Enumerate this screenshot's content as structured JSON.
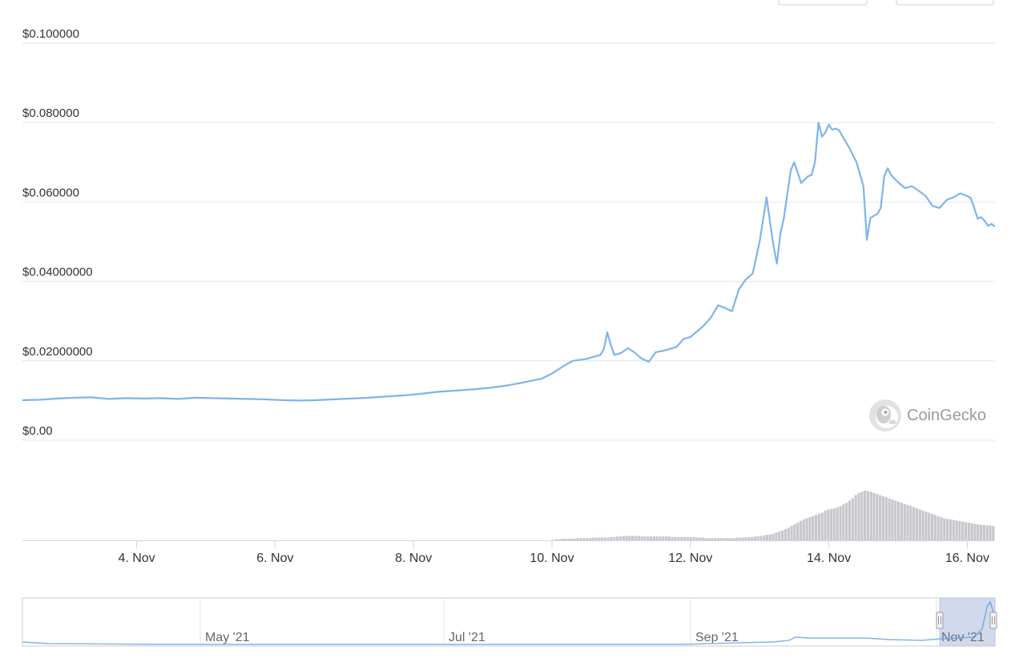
{
  "brand": {
    "name": "CoinGecko",
    "logo_icon": "gecko-logo-icon"
  },
  "colors": {
    "price_line": "#7cb5ec",
    "volume_bar": "#c7c7cc",
    "grid": "#e6e6e6",
    "navigator_mask": "rgba(102,133,194,0.30)"
  },
  "toolbar": {
    "buttons": [
      {
        "label": ""
      },
      {
        "label": ""
      }
    ]
  },
  "chart_data": {
    "type": "line",
    "title": "",
    "xlabel": "",
    "ylabel": "",
    "y_tick_labels": [
      "$0.00",
      "$0.02000000",
      "$0.04000000",
      "$0.060000",
      "$0.080000",
      "$0.100000"
    ],
    "y_ticks": [
      0,
      0.02,
      0.04,
      0.06,
      0.08,
      0.1
    ],
    "ylim": [
      0,
      0.1
    ],
    "x_tick_labels": [
      "4. Nov",
      "6. Nov",
      "8. Nov",
      "10. Nov",
      "12. Nov",
      "14. Nov",
      "16. Nov"
    ],
    "x_ticks": [
      4,
      6,
      8,
      10,
      12,
      14,
      16
    ],
    "xlim": [
      2.35,
      16.4
    ],
    "grid": true,
    "legend": "none",
    "series": [
      {
        "x": [
          2.35,
          2.6,
          2.85,
          3.1,
          3.35,
          3.6,
          3.85,
          4.1,
          4.35,
          4.6,
          4.85,
          5.1,
          5.35,
          5.6,
          5.85,
          6.1,
          6.35,
          6.6,
          6.85,
          7.1,
          7.35,
          7.6,
          7.85,
          8.1,
          8.35,
          8.6,
          8.85,
          9.1,
          9.35,
          9.6,
          9.85,
          10.0,
          10.15,
          10.3,
          10.5,
          10.7,
          10.75,
          10.8,
          10.85,
          10.9,
          11.0,
          11.1,
          11.2,
          11.3,
          11.4,
          11.5,
          11.6,
          11.7,
          11.8,
          11.9,
          12.0,
          12.1,
          12.2,
          12.3,
          12.4,
          12.5,
          12.6,
          12.7,
          12.8,
          12.9,
          13.0,
          13.1,
          13.15,
          13.2,
          13.25,
          13.3,
          13.35,
          13.4,
          13.45,
          13.5,
          13.6,
          13.7,
          13.75,
          13.8,
          13.85,
          13.9,
          13.95,
          14.0,
          14.05,
          14.1,
          14.15,
          14.2,
          14.3,
          14.4,
          14.5,
          14.55,
          14.6,
          14.7,
          14.75,
          14.8,
          14.85,
          14.9,
          15.0,
          15.1,
          15.2,
          15.3,
          15.4,
          15.5,
          15.6,
          15.7,
          15.8,
          15.9,
          16.0,
          16.05,
          16.1,
          16.15,
          16.2,
          16.25,
          16.3,
          16.35,
          16.4
        ],
        "y": [
          0.0101,
          0.0102,
          0.0105,
          0.0107,
          0.0108,
          0.0104,
          0.0106,
          0.0105,
          0.0106,
          0.0104,
          0.0107,
          0.0106,
          0.0105,
          0.0104,
          0.0103,
          0.0101,
          0.01,
          0.0101,
          0.0103,
          0.0105,
          0.0107,
          0.011,
          0.0113,
          0.0117,
          0.0122,
          0.0125,
          0.0128,
          0.0132,
          0.0138,
          0.0146,
          0.0155,
          0.0168,
          0.0185,
          0.02,
          0.0205,
          0.0215,
          0.023,
          0.0272,
          0.024,
          0.0215,
          0.022,
          0.0232,
          0.022,
          0.0205,
          0.0198,
          0.0222,
          0.0225,
          0.023,
          0.0235,
          0.0255,
          0.026,
          0.0275,
          0.029,
          0.031,
          0.034,
          0.0333,
          0.0325,
          0.038,
          0.0405,
          0.042,
          0.05,
          0.0612,
          0.055,
          0.049,
          0.0445,
          0.052,
          0.056,
          0.062,
          0.068,
          0.07,
          0.0648,
          0.0665,
          0.0668,
          0.07,
          0.08,
          0.0765,
          0.0775,
          0.0795,
          0.0782,
          0.0785,
          0.078,
          0.0765,
          0.0735,
          0.07,
          0.064,
          0.0505,
          0.056,
          0.057,
          0.0585,
          0.0665,
          0.0685,
          0.0668,
          0.065,
          0.0635,
          0.064,
          0.0628,
          0.0615,
          0.059,
          0.0585,
          0.0605,
          0.0612,
          0.0622,
          0.0615,
          0.061,
          0.0585,
          0.0558,
          0.0562,
          0.0553,
          0.054,
          0.0545,
          0.0538
        ]
      }
    ],
    "volume": {
      "x_start": 10.0,
      "x_end": 16.4,
      "values": [
        1,
        2,
        2,
        3,
        3,
        3,
        3,
        3,
        4,
        4,
        4,
        4,
        4,
        5,
        5,
        5,
        5,
        5,
        5,
        6,
        6,
        7,
        7,
        8,
        8,
        8,
        8,
        8,
        8,
        7,
        7,
        7,
        7,
        7,
        7,
        7,
        7,
        7,
        7,
        6,
        6,
        6,
        6,
        6,
        6,
        6,
        6,
        5,
        5,
        5,
        4,
        4,
        4,
        4,
        4,
        4,
        4,
        4,
        4,
        4,
        5,
        5,
        5,
        5,
        6,
        6,
        7,
        7,
        8,
        9,
        10,
        11,
        12,
        14,
        16,
        18,
        20,
        23,
        26,
        29,
        32,
        35,
        38,
        40,
        42,
        44,
        46,
        48,
        50,
        54,
        56,
        57,
        58,
        60,
        62,
        65,
        68,
        72,
        76,
        82,
        86,
        88,
        90,
        89,
        88,
        86,
        84,
        82,
        80,
        78,
        76,
        74,
        72,
        70,
        68,
        66,
        64,
        62,
        60,
        58,
        56,
        54,
        52,
        50,
        48,
        46,
        44,
        42,
        40,
        39,
        38,
        37,
        36,
        35,
        34,
        33,
        32,
        31,
        30,
        29,
        28,
        28,
        27,
        27,
        26
      ]
    },
    "navigator": {
      "tick_labels": [
        "May '21",
        "Jul '21",
        "Sep '21",
        "Nov '21"
      ],
      "selection": "last ~2 weeks"
    }
  }
}
